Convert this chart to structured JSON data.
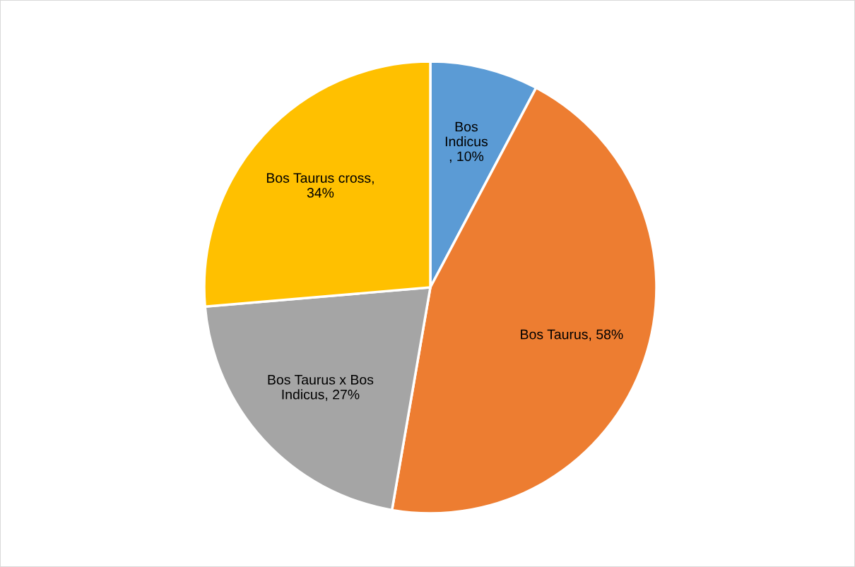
{
  "chart_data": {
    "type": "pie",
    "categories": [
      "Bos\nIndicus",
      "Bos Taurus",
      "Bos Taurus x Bos\nIndicus",
      "Bos Taurus cross"
    ],
    "values": [
      10,
      58,
      27,
      34
    ],
    "colors": [
      "#5b9bd5",
      "#ed7d31",
      "#a5a5a5",
      "#ffc000"
    ],
    "value_labels": [
      "\n, 10%",
      ", 58%",
      ", 27%",
      ",\n34%"
    ]
  }
}
